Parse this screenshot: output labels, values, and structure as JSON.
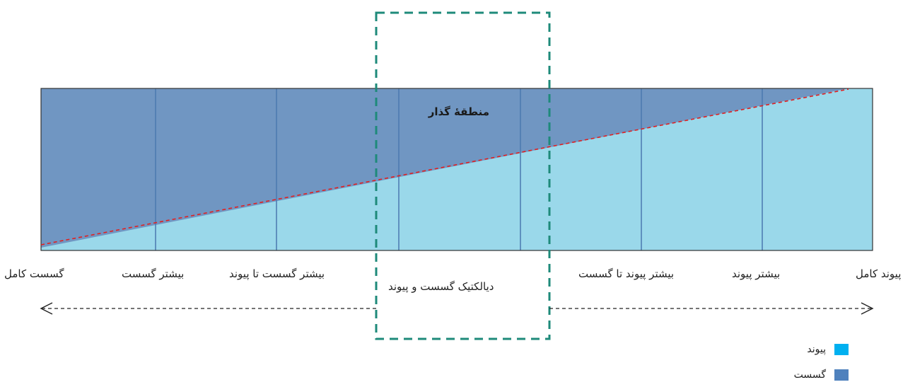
{
  "colors": {
    "dark_region": "#7096C2",
    "light_region": "#9AD8EA",
    "divider": "#4A78B0",
    "trend_line": "#E02020",
    "focus_box": "#1E8A7A",
    "legend_peyvand": "#00B0F0",
    "legend_gosast": "#4F81BD"
  },
  "diagram": {
    "zone_title": "منطقهٔ گذار",
    "center_label": "دیالکتیک گسست و پیوند",
    "spectrum_labels": [
      "گسست کامل",
      "بیشتر گسست",
      "بیشتر گسست تا پیوند",
      "بیشتر پیوند تا گسست",
      "بیشتر پیوند",
      "پیوند کامل"
    ]
  },
  "legend": {
    "items": [
      {
        "label": "پیوند",
        "color": "#00B0F0"
      },
      {
        "label": "گسست",
        "color": "#4F81BD"
      }
    ]
  }
}
